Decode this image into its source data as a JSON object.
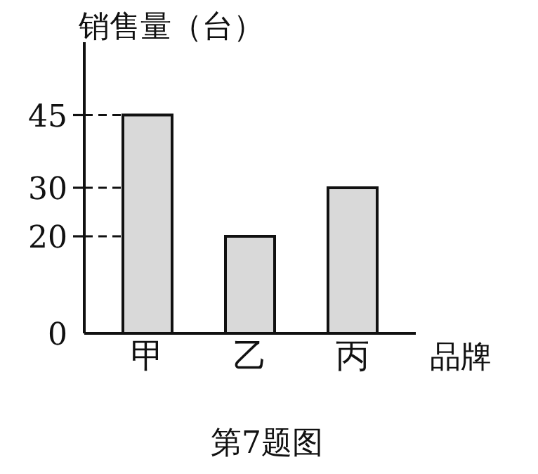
{
  "chart_data": {
    "type": "bar",
    "title": "第7题图",
    "ylabel": "销售量（台）",
    "xlabel": "品牌",
    "categories": [
      "甲",
      "乙",
      "丙"
    ],
    "values": [
      45,
      20,
      30
    ],
    "color": "#d9d9d9",
    "ylim": [
      0,
      60
    ],
    "yticks": [
      0,
      20,
      30,
      45
    ],
    "grid": false,
    "ref_lines": [
      {
        "axis": "y",
        "value": 45,
        "line_style": "dashed"
      },
      {
        "axis": "y",
        "value": 30,
        "line_style": "dashed"
      },
      {
        "axis": "y",
        "value": 20,
        "line_style": "dashed"
      }
    ]
  }
}
